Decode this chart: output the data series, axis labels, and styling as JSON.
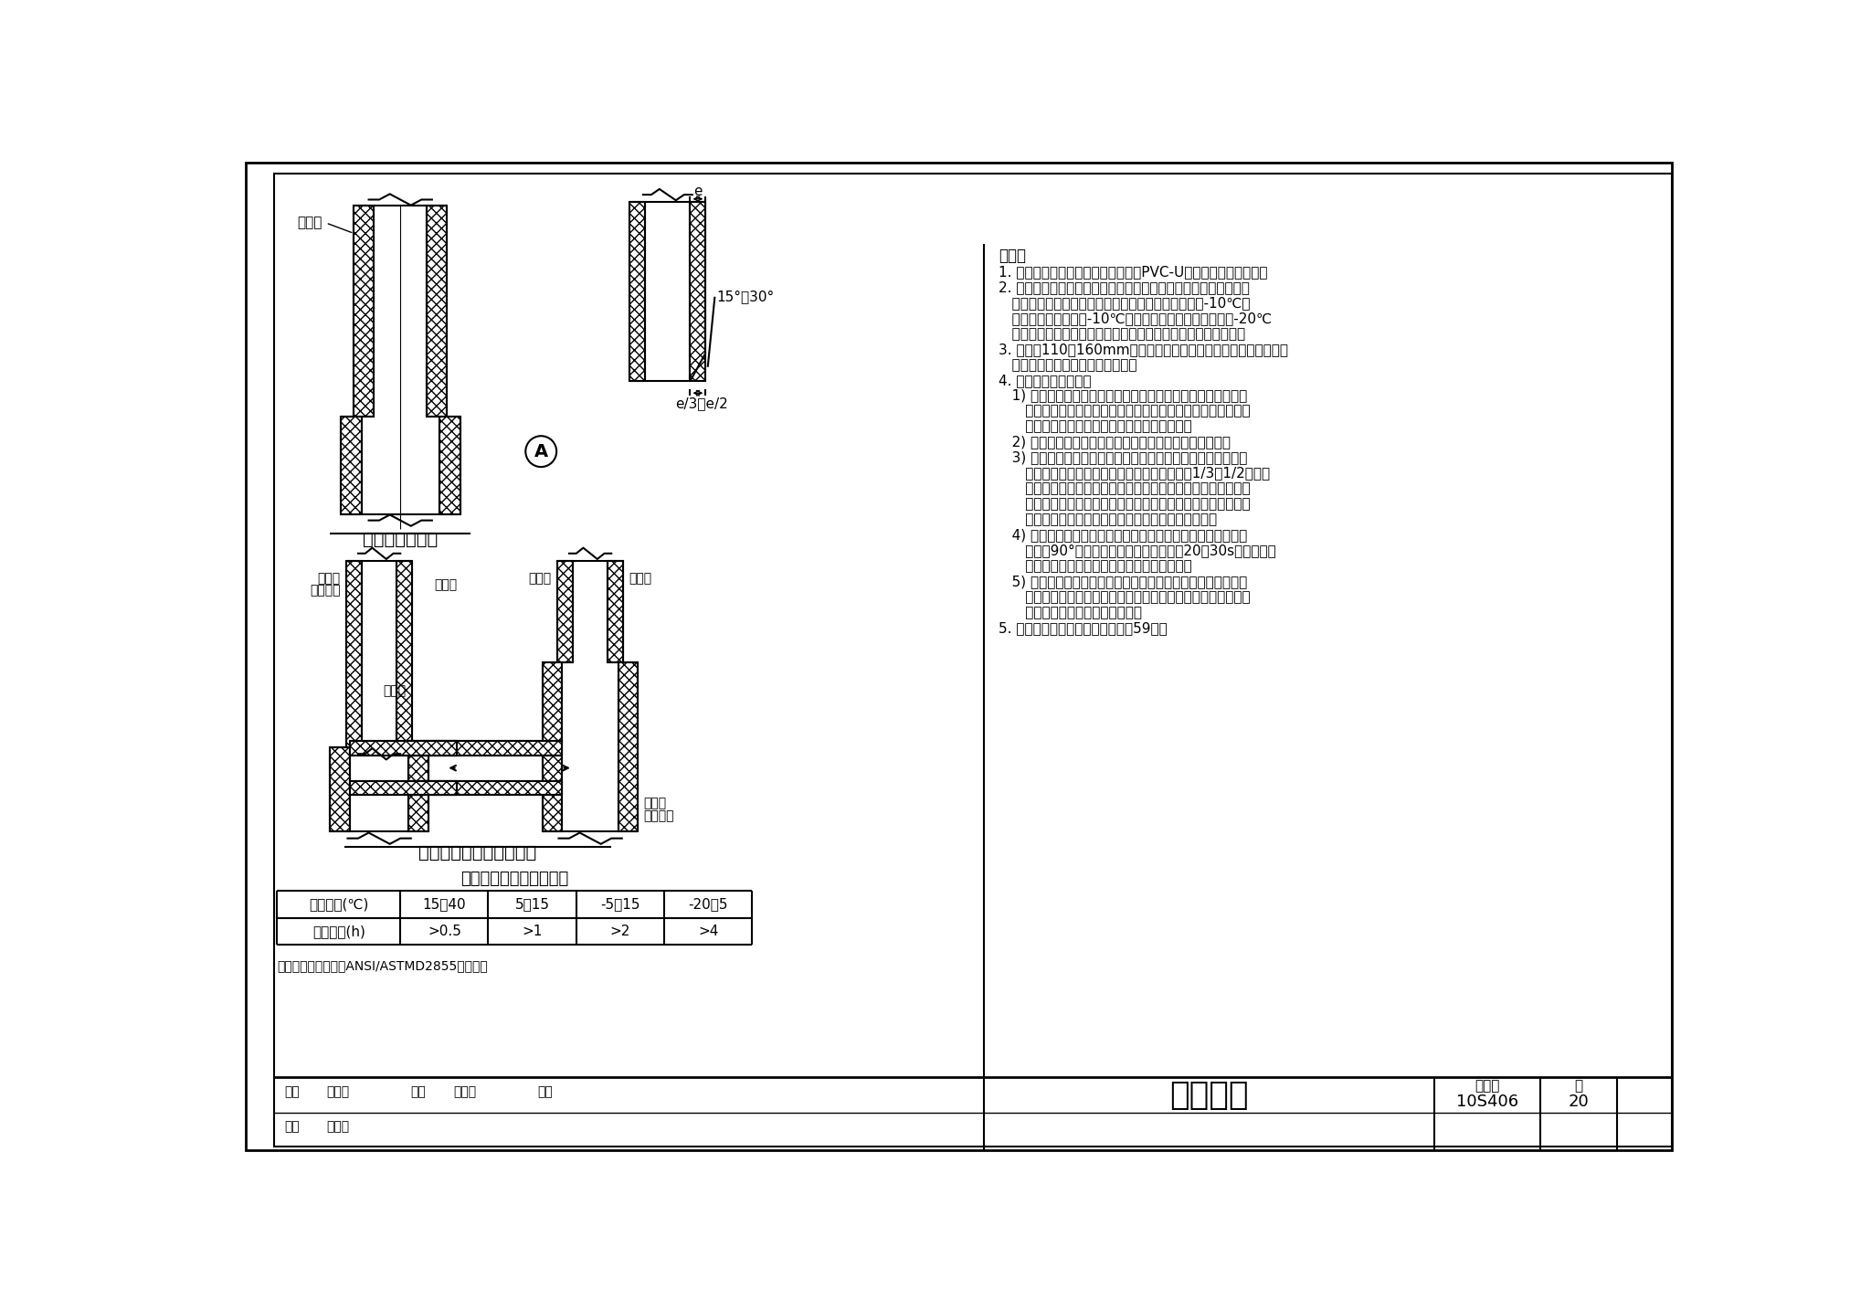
{
  "page_width": 20.48,
  "page_height": 14.23,
  "bg_color": "#ffffff",
  "title": "粘接连接",
  "tu_ji_hao": "10S406",
  "page_num": "20",
  "diagram1_title": "粘接接口示意图",
  "diagram2_title": "承插（异径塑－塑）连接",
  "table_title": "管道粘接后的静置时间表",
  "table_col0": [
    "室外温度(℃)",
    "静置时间(h)"
  ],
  "table_cols": [
    [
      "15～40",
      ">0.5"
    ],
    [
      "5～15",
      ">1"
    ],
    [
      "-5～15",
      ">2"
    ],
    [
      "-20～5",
      ">4"
    ]
  ],
  "table_note": "注：静置时间按美国ANSI/ASTMD2855的建议。",
  "note_lines": [
    "说明：",
    "1. 粘接连接形式适用于硬聚氯乙烯（PVC-U）类管材及管件连接。",
    "2. 管道粘接不宜在湿度很大的环境下进行，操作场所应远离火源、",
    "   防止撞击和阳光直射。冬季施工，环境温度不宜低于-10℃；",
    "   当施工环境温度低于-10℃时，应采取防寒防冻措施。在-20℃",
    "   以下的环境中不得操作。施工场所应保持空气流通，不得封闭。",
    "3. 管径为110～160mm的排水管材，在进行管道粘接施工时，因管",
    "   道轴向力较大，应两人共同操作。",
    "4. 粘接连接操作程序：",
    "   1) 在涂刷胶粘剂之前，应先用砂纸将粘接表面打毛，并用清洁",
    "      干布擦净，粘接表面不得粘有尘埃、水迹及油污，当表面粘有",
    "      油污时，应蘸无水酒精或丙酮等清洁剂擦净。",
    "   2) 根据测量的承口深度，在管道端部画出插入深度标记。",
    "   3) 胶粘剂涂刷：涂胶宜采用鬃刷，当采用其他材料时应防止与",
    "      胶粘剂发生化学作用，刷子宽度一般为管径的1/3～1/2。涂抹",
    "      胶粘剂时应先涂承口，后涂插口，插口涂刷应为管端至插入深",
    "      度标记范围内。胶粘剂涂刷应迅速，由里向外均匀涂抹，胶量",
    "      适当，不得漏涂。不得将管材或管件浸入胶粘剂内。",
    "   4) 将涂抹好的管材对准管件承口，一次迅速插入到标记位置，",
    "      再旋转90°，管材、管件的粘结过程宜在20～30s内完成。若",
    "      操作过程中胶粘剂干固，应清除后重新涂刷。",
    "   5) 粘结工序结束，应及时将残留在承口端部的多余胶粘剂擦干",
    "      净，并根据胶粘剂的性能和气候条件静置至接口固化为止，冬",
    "      季施工时固化时间应适当延长。",
    "5. 塑料异径管的尺寸详见本图集第59页。"
  ],
  "bottom_labels": [
    "审核",
    "肖睿书",
    "校对",
    "曲申苗",
    "审定",
    "设计",
    "刘宗秋"
  ]
}
